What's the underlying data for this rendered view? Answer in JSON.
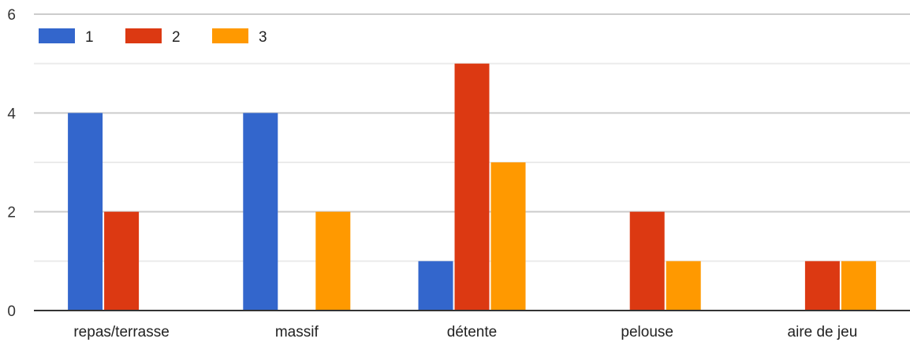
{
  "chart_data": {
    "type": "bar",
    "categories": [
      "repas/terrasse",
      "massif",
      "détente",
      "pelouse",
      "aire de jeu"
    ],
    "series": [
      {
        "name": "1",
        "values": [
          4,
          4,
          1,
          0,
          0
        ],
        "color": "#3366cc"
      },
      {
        "name": "2",
        "values": [
          2,
          0,
          5,
          2,
          1
        ],
        "color": "#dc3912"
      },
      {
        "name": "3",
        "values": [
          0,
          2,
          3,
          1,
          1
        ],
        "color": "#ff9900"
      }
    ],
    "ylim": [
      0,
      6
    ],
    "y_ticks": [
      "0",
      "2",
      "4",
      "6"
    ],
    "grid": true,
    "legend_position": "top-left"
  }
}
